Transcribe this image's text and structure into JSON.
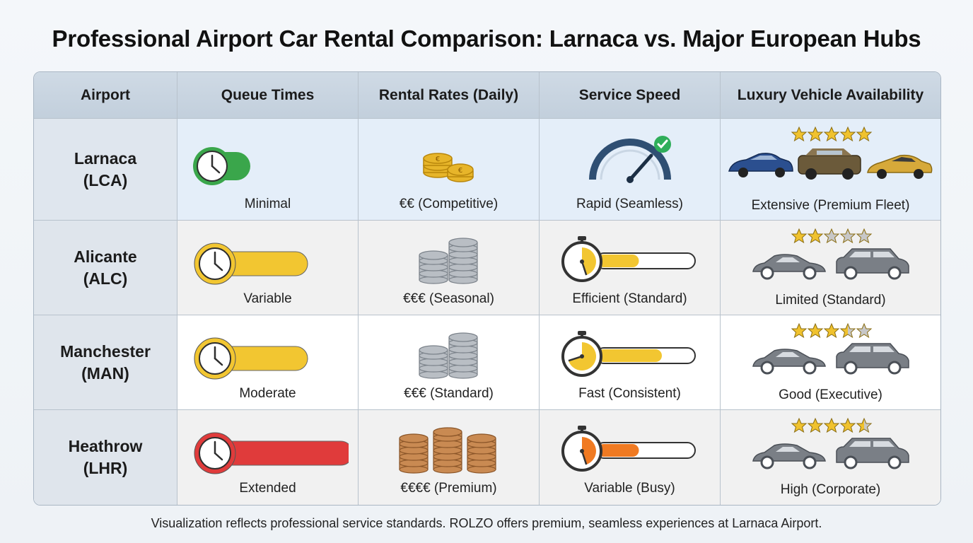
{
  "title": "Professional Airport Car Rental Comparison: Larnaca vs. Major European Hubs",
  "headers": [
    "Airport",
    "Queue Times",
    "Rental Rates (Daily)",
    "Service Speed",
    "Luxury Vehicle Availability"
  ],
  "rows": [
    {
      "airport_line1": "Larnaca",
      "airport_line2": "(LCA)",
      "queue": "Minimal",
      "queue_level": 0.15,
      "queue_color": "#3aa64b",
      "rates": "€€ (Competitive)",
      "coin_style": "gold",
      "speed": "Rapid (Seamless)",
      "speed_icon": "speedometer-icon",
      "luxury": "Extensive (Premium Fleet)",
      "stars": 5,
      "vehicles": "premium-cars"
    },
    {
      "airport_line1": "Alicante",
      "airport_line2": "(ALC)",
      "queue": "Variable",
      "queue_level": 0.6,
      "queue_color": "#f2c631",
      "rates": "€€€ (Seasonal)",
      "coin_style": "silver",
      "speed": "Efficient (Standard)",
      "speed_level": 0.45,
      "speed_color": "#f2c631",
      "luxury": "Limited (Standard)",
      "stars": 2
    },
    {
      "airport_line1": "Manchester",
      "airport_line2": "(MAN)",
      "queue": "Moderate",
      "queue_level": 0.6,
      "queue_color": "#f2c631",
      "rates": "€€€ (Standard)",
      "coin_style": "silver",
      "speed": "Fast (Consistent)",
      "speed_level": 0.7,
      "speed_color": "#f2c631",
      "luxury": "Good (Executive)",
      "stars": 3.5
    },
    {
      "airport_line1": "Heathrow",
      "airport_line2": "(LHR)",
      "queue": "Extended",
      "queue_level": 1.0,
      "queue_color": "#e03b3b",
      "rates": "€€€€ (Premium)",
      "coin_style": "bronze",
      "speed": "Variable (Busy)",
      "speed_level": 0.45,
      "speed_color": "#f07a22",
      "luxury": "High (Corporate)",
      "stars": 4.5
    }
  ],
  "footer": "Visualization reflects professional service standards. ROLZO offers premium, seamless experiences at Larnaca Airport."
}
